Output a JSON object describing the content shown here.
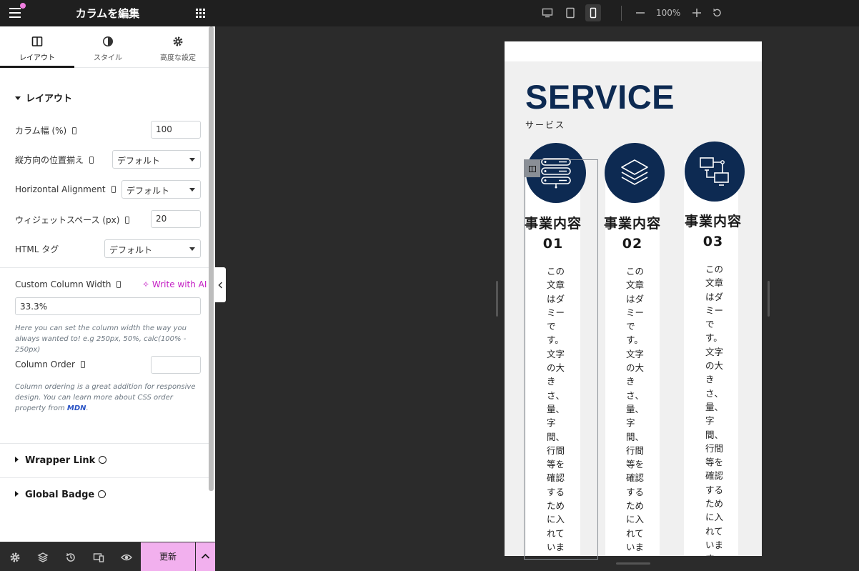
{
  "panel": {
    "title": "カラムを編集",
    "tabs": [
      {
        "label": "レイアウト",
        "icon": "columns-icon",
        "active": true
      },
      {
        "label": "スタイル",
        "icon": "contrast-icon",
        "active": false
      },
      {
        "label": "高度な設定",
        "icon": "gear-icon",
        "active": false
      }
    ],
    "section_title": "レイアウト",
    "controls": {
      "column_width": {
        "label": "カラム幅 (%)",
        "value": "100"
      },
      "vertical_align": {
        "label": "縦方向の位置揃え",
        "value": "デフォルト"
      },
      "horizontal_align": {
        "label": "Horizontal Alignment",
        "value": "デフォルト"
      },
      "widget_space": {
        "label": "ウィジェットスペース (px)",
        "value": "20"
      },
      "html_tag": {
        "label": "HTML タグ",
        "value": "デフォルト"
      },
      "custom_width": {
        "label": "Custom Column Width",
        "write_ai": "Write with AI",
        "value": "33.3%",
        "help": "Here you can set the column width the way you always wanted to! e.g 250px, 50%, calc(100% - 250px)"
      },
      "column_order": {
        "label": "Column Order",
        "value": "",
        "help_prefix": "Column ordering is a great addition for responsive design. You can learn more about CSS order property from ",
        "help_link": "MDN",
        "help_suffix": "."
      }
    },
    "accordions": [
      {
        "label": "Wrapper Link"
      },
      {
        "label": "Global Badge"
      }
    ],
    "footer": {
      "update_label": "更新"
    }
  },
  "toolbar": {
    "zoom": "100%",
    "devices": [
      "desktop-icon",
      "tablet-icon",
      "mobile-icon"
    ],
    "active_device": "mobile"
  },
  "preview": {
    "title": "SERVICE",
    "subtitle": "サービス",
    "brand_color": "#0d2a52",
    "columns": [
      {
        "title": "事業内容 01",
        "icon": "server-icon",
        "body": "この文章はダミーです。文字の大きさ、量、字間、行間等を確認するために入れています。"
      },
      {
        "title": "事業内容 02",
        "icon": "layers-icon",
        "body": "この文章はダミーです。文字の大きさ、量、字間、行間等を確認するために入れています。"
      },
      {
        "title": "事業内容 03",
        "icon": "network-icon",
        "body": "この文章はダミーです。文字の大きさ、量、字間、行間等を確認するために入れています。"
      }
    ]
  }
}
